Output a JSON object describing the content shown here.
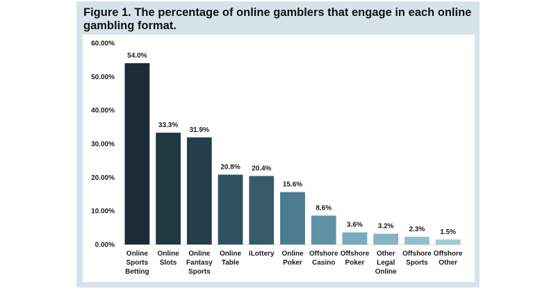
{
  "title": "Figure 1. The percentage of online gamblers that engage in each online gambling format.",
  "chart_data": {
    "type": "bar",
    "categories": [
      [
        "Online",
        "Sports",
        "Betting"
      ],
      [
        "Online",
        "Slots"
      ],
      [
        "Online",
        "Fantasy",
        "Sports"
      ],
      [
        "Online",
        "Table"
      ],
      [
        "iLottery"
      ],
      [
        "Online",
        "Poker"
      ],
      [
        "Offshore",
        "Casino"
      ],
      [
        "Offshore",
        "Poker"
      ],
      [
        "Other",
        "Legal",
        "Online"
      ],
      [
        "Offshore",
        "Sports"
      ],
      [
        "Offshore",
        "Other"
      ]
    ],
    "values": [
      54.0,
      33.3,
      31.9,
      20.8,
      20.4,
      15.6,
      8.6,
      3.6,
      3.2,
      2.3,
      1.5
    ],
    "value_labels": [
      "54.0%",
      "33.3%",
      "31.9%",
      "20.8%",
      "20.4%",
      "15.6%",
      "8.6%",
      "3.6%",
      "3.2%",
      "2.3%",
      "1.5%"
    ],
    "bar_colors": [
      "#1b2c38",
      "#213843",
      "#253e4a",
      "#2d5363",
      "#365c6c",
      "#4a7b8e",
      "#5f92a6",
      "#7aaabb",
      "#86b3c3",
      "#93c0d0",
      "#a1ccda"
    ],
    "yticks": [
      0,
      10,
      20,
      30,
      40,
      50,
      60
    ],
    "ytick_labels": [
      "0.00%",
      "10.00%",
      "20.00%",
      "30.00%",
      "40.00%",
      "50.00%",
      "60.00%"
    ],
    "ylim": [
      0,
      60
    ],
    "grid": false,
    "legend": "none"
  }
}
